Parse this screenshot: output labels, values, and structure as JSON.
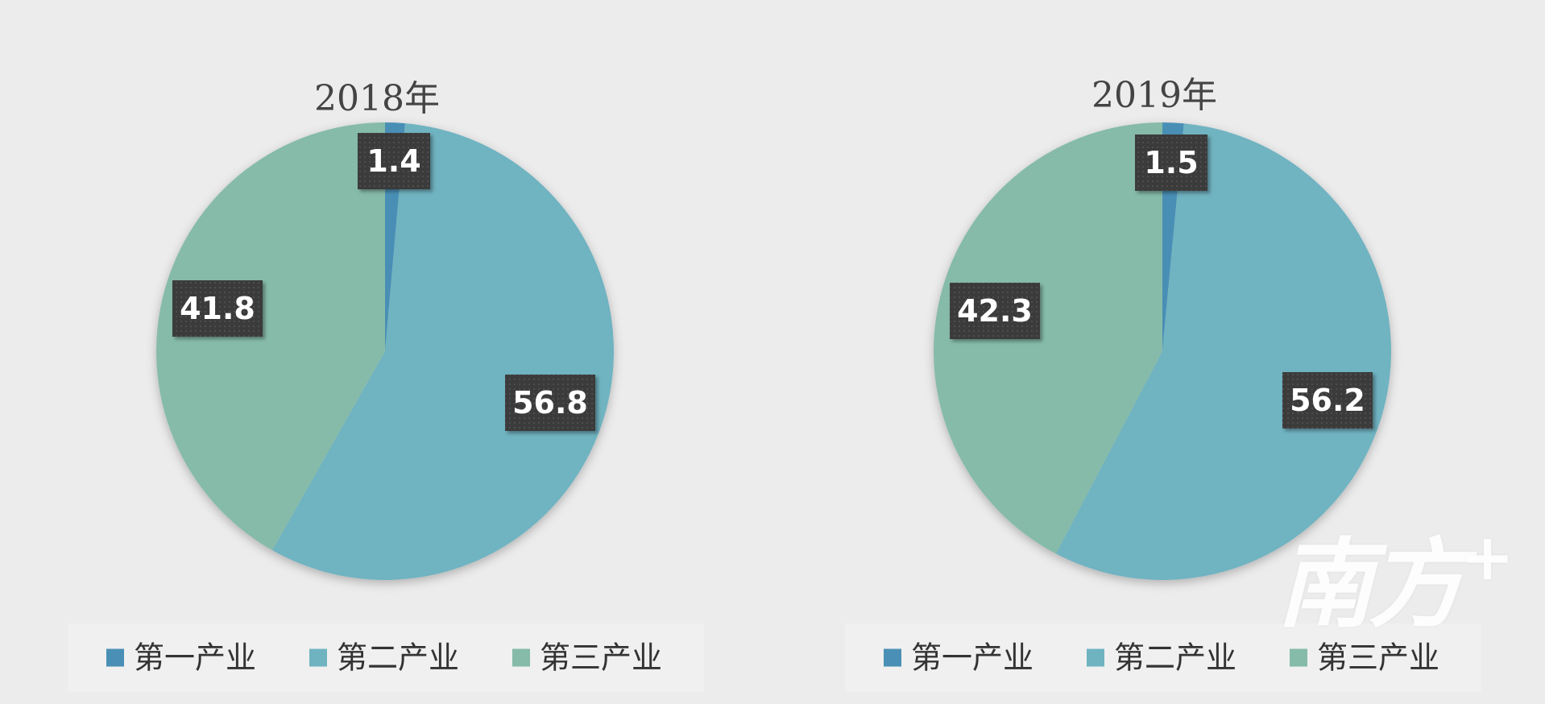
{
  "chart_data": [
    {
      "type": "pie",
      "title": "2018年",
      "categories": [
        "第一产业",
        "第二产业",
        "第三产业"
      ],
      "values": [
        1.4,
        56.8,
        41.8
      ],
      "colors": [
        "#4a8fb5",
        "#6fb3c1",
        "#86bba9"
      ],
      "legend": "bottom"
    },
    {
      "type": "pie",
      "title": "2019年",
      "categories": [
        "第一产业",
        "第二产业",
        "第三产业"
      ],
      "values": [
        1.5,
        56.2,
        42.3
      ],
      "colors": [
        "#4a8fb5",
        "#6fb3c1",
        "#86bba9"
      ],
      "legend": "bottom"
    }
  ],
  "watermark": {
    "text": "南方",
    "plus": "+"
  }
}
